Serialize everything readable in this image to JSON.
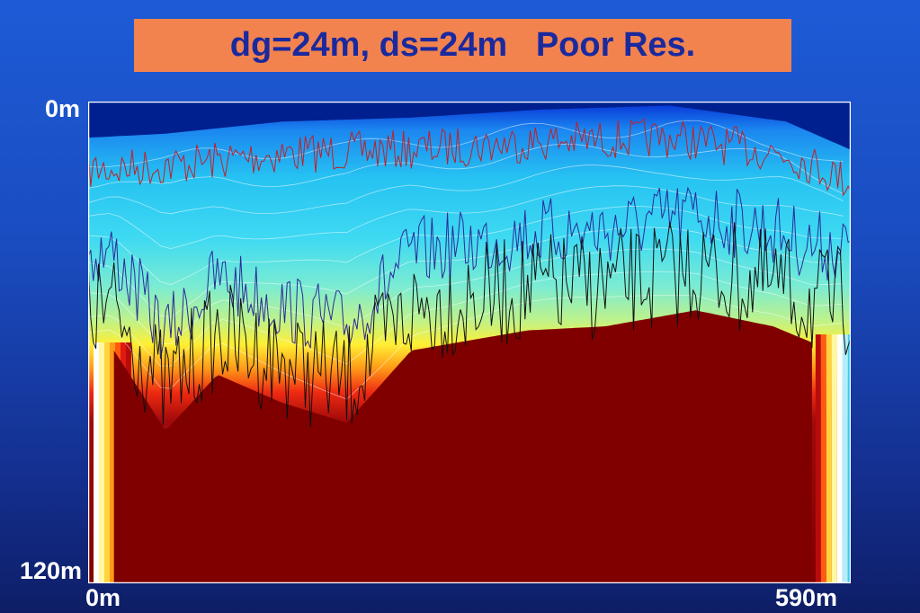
{
  "title": "dg=24m, ds=24m   Poor Res.",
  "chart_data": {
    "type": "heatmap",
    "title": "dg=24m, ds=24m   Poor Res.",
    "x_axis": {
      "tick_labels": [
        "0m",
        "590m"
      ],
      "range_m": [
        0,
        590
      ]
    },
    "y_axis": {
      "tick_labels": [
        "0m",
        "120m"
      ],
      "range_m": [
        0,
        120
      ],
      "direction": "depth increasing downward"
    },
    "colormap": "jet (dark blue → cyan → yellow → red → dark red)",
    "grid": false,
    "legend": "none",
    "series": [
      {
        "color": "#c0202a",
        "description_values": "shallow trace near top surface"
      },
      {
        "color": "#2a2a9a",
        "description_values": "blue trace at mid depth"
      },
      {
        "color": "#111111",
        "description_values": "black trace at mid depth"
      }
    ],
    "surface_depth_m": [
      [
        0,
        9
      ],
      [
        60,
        8
      ],
      [
        150,
        5
      ],
      [
        250,
        4
      ],
      [
        350,
        2
      ],
      [
        450,
        1
      ],
      [
        540,
        5
      ],
      [
        590,
        12
      ]
    ],
    "high_value_top_depth_m": [
      [
        20,
        62
      ],
      [
        60,
        82
      ],
      [
        100,
        68
      ],
      [
        150,
        75
      ],
      [
        200,
        80
      ],
      [
        250,
        62
      ],
      [
        340,
        57
      ],
      [
        400,
        56
      ],
      [
        470,
        52
      ],
      [
        530,
        56
      ],
      [
        560,
        60
      ]
    ]
  },
  "colors": {
    "title_box": "#f2834f",
    "title_text": "#1a2a9e",
    "background": "#1a4cc0",
    "max_value": "#800000"
  }
}
